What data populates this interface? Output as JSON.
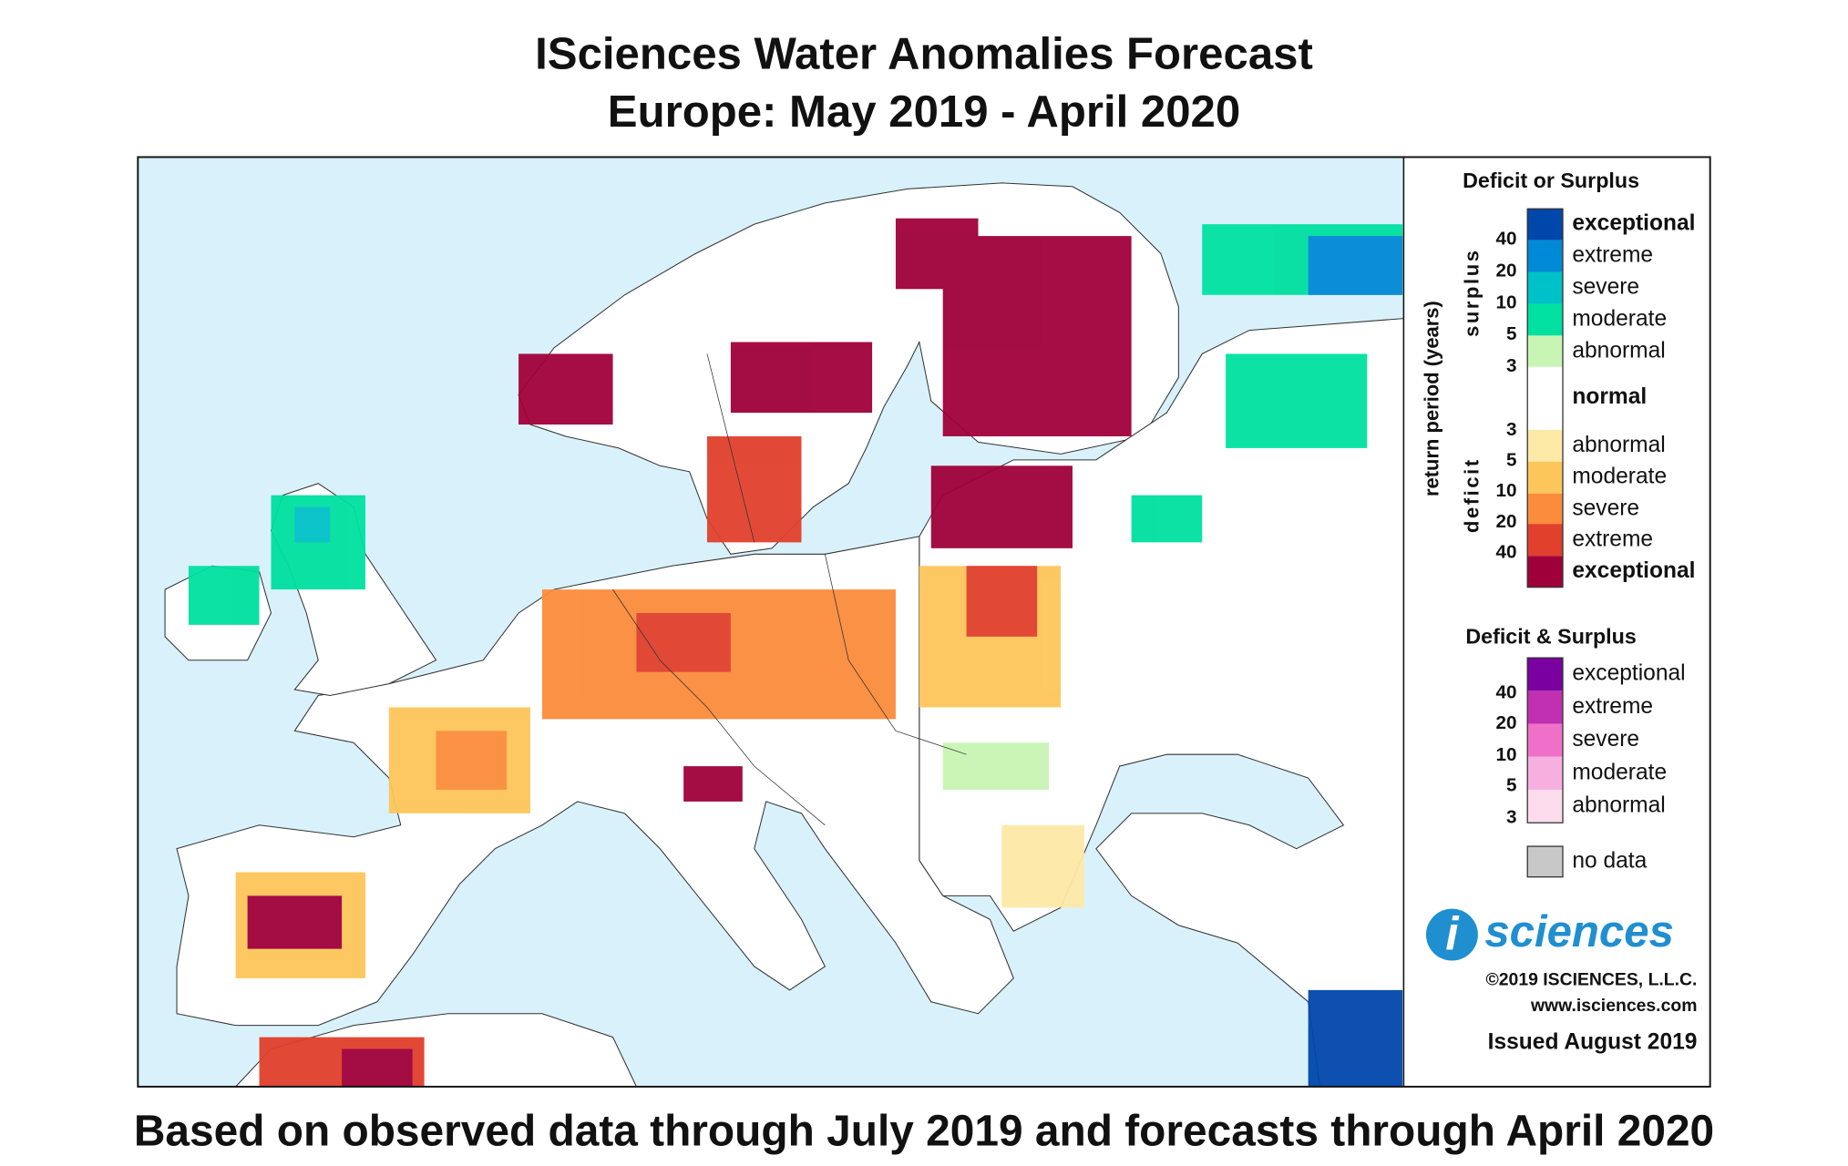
{
  "title": [
    "ISciences Water Anomalies Forecast",
    "Europe: May 2019 - April 2020"
  ],
  "legend": {
    "heading_single": "Deficit or Surplus",
    "axis_label": "return period (years)",
    "surplus_label": "surplus",
    "deficit_label": "deficit",
    "surplus_ticks": [
      40,
      20,
      10,
      5,
      3
    ],
    "deficit_ticks": [
      3,
      5,
      10,
      20,
      40
    ],
    "single_levels": [
      {
        "label": "exceptional",
        "color": "#0047ab"
      },
      {
        "label": "extreme",
        "color": "#0089d6"
      },
      {
        "label": "severe",
        "color": "#00c0c8"
      },
      {
        "label": "moderate",
        "color": "#00e0a0"
      },
      {
        "label": "abnormal",
        "color": "#c8f5b4"
      },
      {
        "label": "normal",
        "color": "#ffffff"
      },
      {
        "label": "abnormal",
        "color": "#fde9a6"
      },
      {
        "label": "moderate",
        "color": "#fdc65a"
      },
      {
        "label": "severe",
        "color": "#fb8c3c"
      },
      {
        "label": "extreme",
        "color": "#e0402c"
      },
      {
        "label": "exceptional",
        "color": "#a0003a"
      }
    ],
    "heading_both": "Deficit & Surplus",
    "both_ticks": [
      40,
      20,
      10,
      5,
      3
    ],
    "both_levels": [
      {
        "label": "exceptional",
        "color": "#7a00a0"
      },
      {
        "label": "extreme",
        "color": "#c030b0"
      },
      {
        "label": "severe",
        "color": "#f070c8"
      },
      {
        "label": "moderate",
        "color": "#f6b0e0"
      },
      {
        "label": "abnormal",
        "color": "#fcdcec"
      }
    ],
    "no_data": {
      "label": "no data",
      "color": "#c8c8c8"
    }
  },
  "logo": {
    "mark": "i",
    "text": "sciences",
    "copyright": "©2019 ISCIENCES, L.L.C.",
    "url": "www.isciences.com",
    "issued": "Issued August 2019"
  },
  "footer": "Based on observed data through July 2019 and forecasts through April 2020"
}
